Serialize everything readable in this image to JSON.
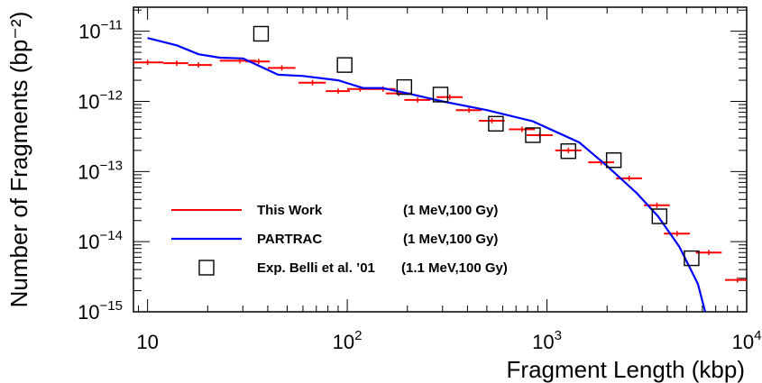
{
  "chart_data": {
    "type": "line",
    "xlabel": "Fragment Length (kbp)",
    "ylabel": "Number of Fragments (bp⁻²)",
    "xlim": [
      8.5,
      10000
    ],
    "ylim": [
      1e-15,
      2.2e-11
    ],
    "xscale": "log",
    "yscale": "log",
    "grid": false,
    "legend_position": "bottom-left",
    "x_tick_labels": [
      {
        "base": "10",
        "exp": ""
      },
      {
        "base": "10",
        "exp": "2"
      },
      {
        "base": "10",
        "exp": "3"
      },
      {
        "base": "10",
        "exp": "4"
      }
    ],
    "y_tick_labels": [
      {
        "base": "10",
        "exp": "−15"
      },
      {
        "base": "10",
        "exp": "−14"
      },
      {
        "base": "10",
        "exp": "−13"
      },
      {
        "base": "10",
        "exp": "−12"
      },
      {
        "base": "10",
        "exp": "−11"
      }
    ],
    "series": [
      {
        "name": "This Work",
        "condition": "(1 MeV,100 Gy)",
        "style": "steps",
        "color": "#ff0000",
        "points": [
          {
            "x": 10,
            "x_lo": 8.5,
            "x_hi": 12,
            "y": 3.6e-12
          },
          {
            "x": 14,
            "x_lo": 12,
            "x_hi": 16,
            "y": 3.5e-12
          },
          {
            "x": 18,
            "x_lo": 16,
            "x_hi": 21,
            "y": 3.3e-12
          },
          {
            "x": 29,
            "x_lo": 23,
            "x_hi": 35,
            "y": 3.8e-12
          },
          {
            "x": 36,
            "x_lo": 31,
            "x_hi": 41,
            "y": 3.7e-12
          },
          {
            "x": 47,
            "x_lo": 40,
            "x_hi": 55,
            "y": 3e-12
          },
          {
            "x": 67,
            "x_lo": 57,
            "x_hi": 78,
            "y": 1.85e-12
          },
          {
            "x": 90,
            "x_lo": 78,
            "x_hi": 103,
            "y": 1.4e-12
          },
          {
            "x": 116,
            "x_lo": 100,
            "x_hi": 134,
            "y": 1.5e-12
          },
          {
            "x": 151,
            "x_lo": 130,
            "x_hi": 174,
            "y": 1.5e-12
          },
          {
            "x": 181,
            "x_lo": 156,
            "x_hi": 209,
            "y": 1.3e-12
          },
          {
            "x": 225,
            "x_lo": 193,
            "x_hi": 261,
            "y": 1.05e-12
          },
          {
            "x": 326,
            "x_lo": 280,
            "x_hi": 378,
            "y": 1.15e-12
          },
          {
            "x": 407,
            "x_lo": 350,
            "x_hi": 471,
            "y": 7.5e-13
          },
          {
            "x": 530,
            "x_lo": 456,
            "x_hi": 614,
            "y": 5.3e-13
          },
          {
            "x": 750,
            "x_lo": 645,
            "x_hi": 870,
            "y": 4e-13
          },
          {
            "x": 920,
            "x_lo": 792,
            "x_hi": 1068,
            "y": 3.3e-13
          },
          {
            "x": 1280,
            "x_lo": 1100,
            "x_hi": 1486,
            "y": 2e-13
          },
          {
            "x": 1870,
            "x_lo": 1610,
            "x_hi": 2170,
            "y": 1.35e-13
          },
          {
            "x": 2580,
            "x_lo": 2220,
            "x_hi": 2990,
            "y": 8e-14
          },
          {
            "x": 3550,
            "x_lo": 3060,
            "x_hi": 4120,
            "y": 3.3e-14
          },
          {
            "x": 4480,
            "x_lo": 3850,
            "x_hi": 5200,
            "y": 1.3e-14
          },
          {
            "x": 6460,
            "x_lo": 5560,
            "x_hi": 7500,
            "y": 7e-15
          },
          {
            "x": 9000,
            "x_lo": 7800,
            "x_hi": 10000,
            "y": 2.85e-15
          }
        ]
      },
      {
        "name": "PARTRAC",
        "condition": "(1 MeV,100 Gy)",
        "style": "line",
        "color": "#0000ff",
        "points": [
          {
            "x": 10,
            "y": 8e-12
          },
          {
            "x": 14,
            "y": 6.3e-12
          },
          {
            "x": 18,
            "y": 4.7e-12
          },
          {
            "x": 23,
            "y": 4.2e-12
          },
          {
            "x": 30,
            "y": 4.1e-12
          },
          {
            "x": 45,
            "y": 2.4e-12
          },
          {
            "x": 60,
            "y": 2.3e-12
          },
          {
            "x": 90,
            "y": 2e-12
          },
          {
            "x": 120,
            "y": 1.55e-12
          },
          {
            "x": 150,
            "y": 1.55e-12
          },
          {
            "x": 200,
            "y": 1.3e-12
          },
          {
            "x": 300,
            "y": 1e-12
          },
          {
            "x": 500,
            "y": 7.5e-13
          },
          {
            "x": 850,
            "y": 5.2e-13
          },
          {
            "x": 1450,
            "y": 2.6e-13
          },
          {
            "x": 2000,
            "y": 1.2e-13
          },
          {
            "x": 2800,
            "y": 5e-14
          },
          {
            "x": 3600,
            "y": 2.3e-14
          },
          {
            "x": 4600,
            "y": 8.5e-15
          },
          {
            "x": 5700,
            "y": 2.5e-15
          },
          {
            "x": 6200,
            "y": 1e-15
          }
        ]
      },
      {
        "name": "Exp. Belli et al. ’01",
        "condition": "(1.1 MeV,100 Gy)",
        "style": "markers",
        "marker": "open-square",
        "color": "#000000",
        "points": [
          {
            "x": 37,
            "y": 9.2e-12
          },
          {
            "x": 97,
            "y": 3.3e-12
          },
          {
            "x": 193,
            "y": 1.6e-12
          },
          {
            "x": 293,
            "y": 1.25e-12
          },
          {
            "x": 555,
            "y": 4.8e-13
          },
          {
            "x": 850,
            "y": 3.3e-13
          },
          {
            "x": 1280,
            "y": 1.95e-13
          },
          {
            "x": 2160,
            "y": 1.45e-13
          },
          {
            "x": 3660,
            "y": 2.3e-14
          },
          {
            "x": 5300,
            "y": 5.8e-15
          }
        ]
      }
    ]
  }
}
